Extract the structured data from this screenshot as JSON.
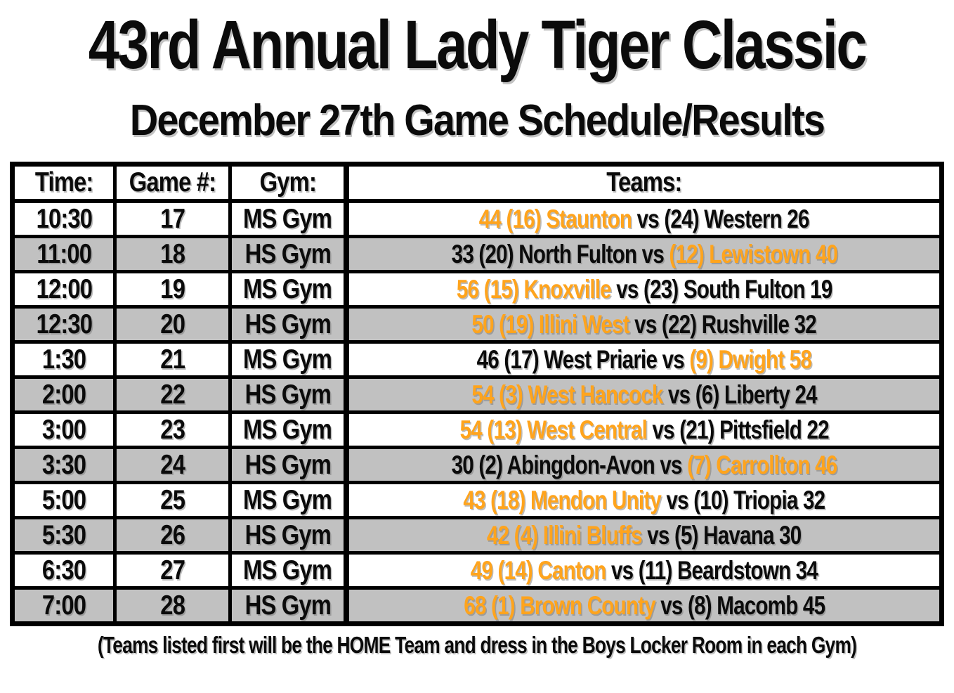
{
  "page": {
    "title": "43rd Annual Lady Tiger Classic",
    "subtitle": "December 27th Game Schedule/Results",
    "footer_note": "(Teams listed first will be the HOME Team and dress in the Boys Locker Room in each Gym)"
  },
  "colors": {
    "highlight_orange": "#FFA41D",
    "row_alt_gray": "#C1C1C1",
    "text_black": "#0B0B0B"
  },
  "schedule_table": {
    "headers": {
      "time": "Time:",
      "game": "Game #:",
      "gym": "Gym:",
      "teams": "Teams:"
    },
    "rows": [
      {
        "time": "10:30",
        "game": "17",
        "gym": "MS Gym",
        "teams": [
          {
            "text": "44 (16) Staunton ",
            "win": true
          },
          {
            "text": "vs (24) Western 26",
            "win": false
          }
        ]
      },
      {
        "time": "11:00",
        "game": "18",
        "gym": "HS Gym",
        "teams": [
          {
            "text": "33 (20) North Fulton vs ",
            "win": false
          },
          {
            "text": "(12) Lewistown 40",
            "win": true
          }
        ]
      },
      {
        "time": "12:00",
        "game": "19",
        "gym": "MS Gym",
        "teams": [
          {
            "text": "56 (15) Knoxville ",
            "win": true
          },
          {
            "text": "vs (23) South Fulton 19",
            "win": false
          }
        ]
      },
      {
        "time": "12:30",
        "game": "20",
        "gym": "HS Gym",
        "teams": [
          {
            "text": "50 (19) Illini West ",
            "win": true
          },
          {
            "text": "vs (22) Rushville 32",
            "win": false
          }
        ]
      },
      {
        "time": "1:30",
        "game": "21",
        "gym": "MS Gym",
        "teams": [
          {
            "text": "46 (17) West Priarie vs ",
            "win": false
          },
          {
            "text": "(9) Dwight 58",
            "win": true
          }
        ]
      },
      {
        "time": "2:00",
        "game": "22",
        "gym": "HS Gym",
        "teams": [
          {
            "text": "54 (3) West Hancock ",
            "win": true
          },
          {
            "text": "vs (6) Liberty 24",
            "win": false
          }
        ]
      },
      {
        "time": "3:00",
        "game": "23",
        "gym": "MS Gym",
        "teams": [
          {
            "text": "54 (13) West Central ",
            "win": true
          },
          {
            "text": "vs (21) Pittsfield 22",
            "win": false
          }
        ]
      },
      {
        "time": "3:30",
        "game": "24",
        "gym": "HS Gym",
        "teams": [
          {
            "text": "30 (2) Abingdon-Avon vs ",
            "win": false
          },
          {
            "text": "(7) Carrollton 46",
            "win": true
          }
        ]
      },
      {
        "time": "5:00",
        "game": "25",
        "gym": "MS Gym",
        "teams": [
          {
            "text": "43 (18) Mendon Unity ",
            "win": true
          },
          {
            "text": "vs (10) Triopia 32",
            "win": false
          }
        ]
      },
      {
        "time": "5:30",
        "game": "26",
        "gym": "HS Gym",
        "teams": [
          {
            "text": "42 (4) Illini Bluffs ",
            "win": true
          },
          {
            "text": "vs (5) Havana 30",
            "win": false
          }
        ]
      },
      {
        "time": "6:30",
        "game": "27",
        "gym": "MS Gym",
        "teams": [
          {
            "text": "49 (14) Canton ",
            "win": true
          },
          {
            "text": "vs (11) Beardstown 34",
            "win": false
          }
        ]
      },
      {
        "time": "7:00",
        "game": "28",
        "gym": "HS Gym",
        "teams": [
          {
            "text": "68 (1) Brown County ",
            "win": true
          },
          {
            "text": "vs (8) Macomb 45",
            "win": false
          }
        ]
      }
    ]
  }
}
